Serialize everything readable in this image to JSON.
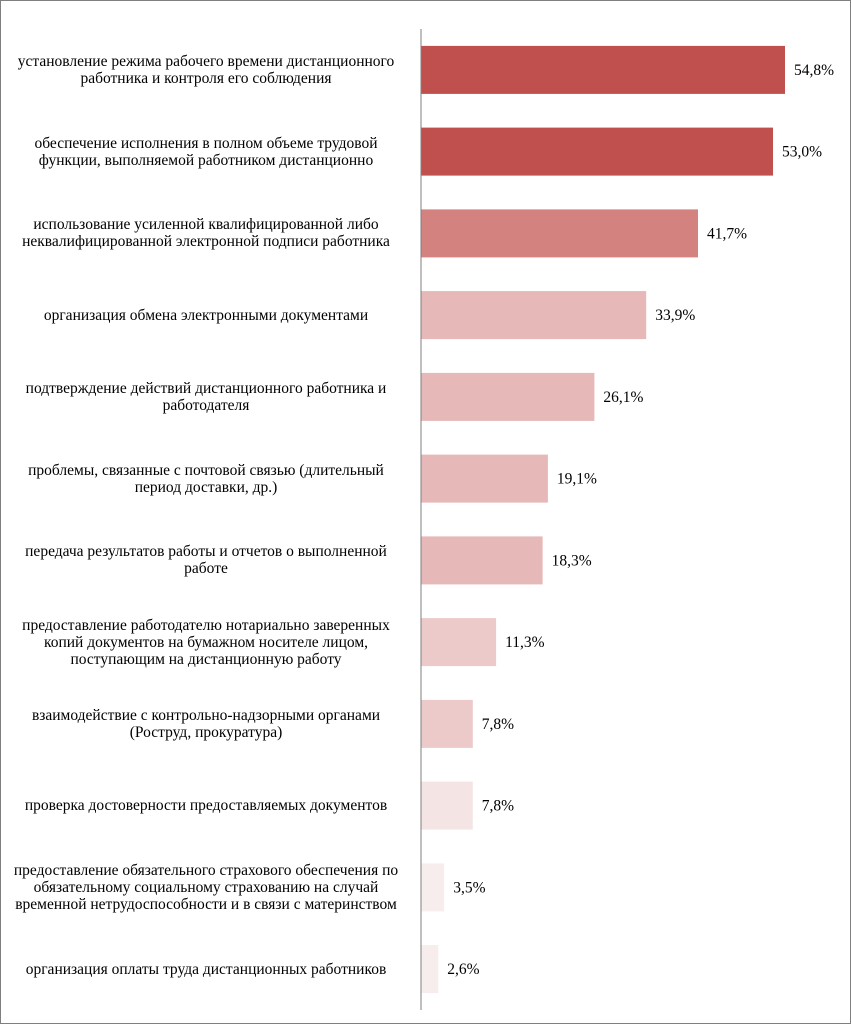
{
  "chart_data": {
    "type": "bar",
    "orientation": "horizontal",
    "title": "",
    "xlabel": "",
    "ylabel": "",
    "xlim": [
      0,
      60
    ],
    "grid": false,
    "legend": "none",
    "categories": [
      "установление  режима рабочего времени дистанционного работника и контроля его соблюдения",
      "обеспечение исполнения в полном объеме  трудовой функции, выполняемой работником дистанционно",
      "использование усиленной  квалифицированной либо неквалифицированной электронной подписи работника",
      "организация обмена электронными документами",
      "подтверждение действий дистанционного работника и работодателя",
      "проблемы, связанные с почтовой связью (длительный период доставки, др.)",
      "передача результатов работы и отчетов о выполненной работе",
      "предоставление работодателю нотариально заверенных копий документов на бумажном носителе лицом, поступающим на дистанционную работу",
      "взаимодействие с контрольно-надзорными органами (Роструд, прокуратура)",
      "проверка достоверности предоставляемых документов",
      "предоставление обязательного страхового обеспечения по обязательному социальному страхованию на случай временной нетрудоспособности и в связи с материнством",
      "организация оплаты труда дистанционных работников"
    ],
    "values": [
      54.8,
      53.0,
      41.7,
      33.9,
      26.1,
      19.1,
      18.3,
      11.3,
      7.8,
      7.8,
      3.5,
      2.6
    ],
    "value_labels": [
      "54,8%",
      "53,0%",
      "41,7%",
      "33,9%",
      "26,1%",
      "19,1%",
      "18,3%",
      "11,3%",
      "7,8%",
      "7,8%",
      "3,5%",
      "2,6%"
    ],
    "bar_colors": [
      "#c0504d",
      "#c0504d",
      "#d38280",
      "#e6b8b7",
      "#e6b8b7",
      "#e6b8b7",
      "#e6b8b7",
      "#eccac9",
      "#eccac9",
      "#f5e4e4",
      "#f8eded",
      "#f8eded"
    ],
    "axis_color": "#7f7f7f"
  }
}
